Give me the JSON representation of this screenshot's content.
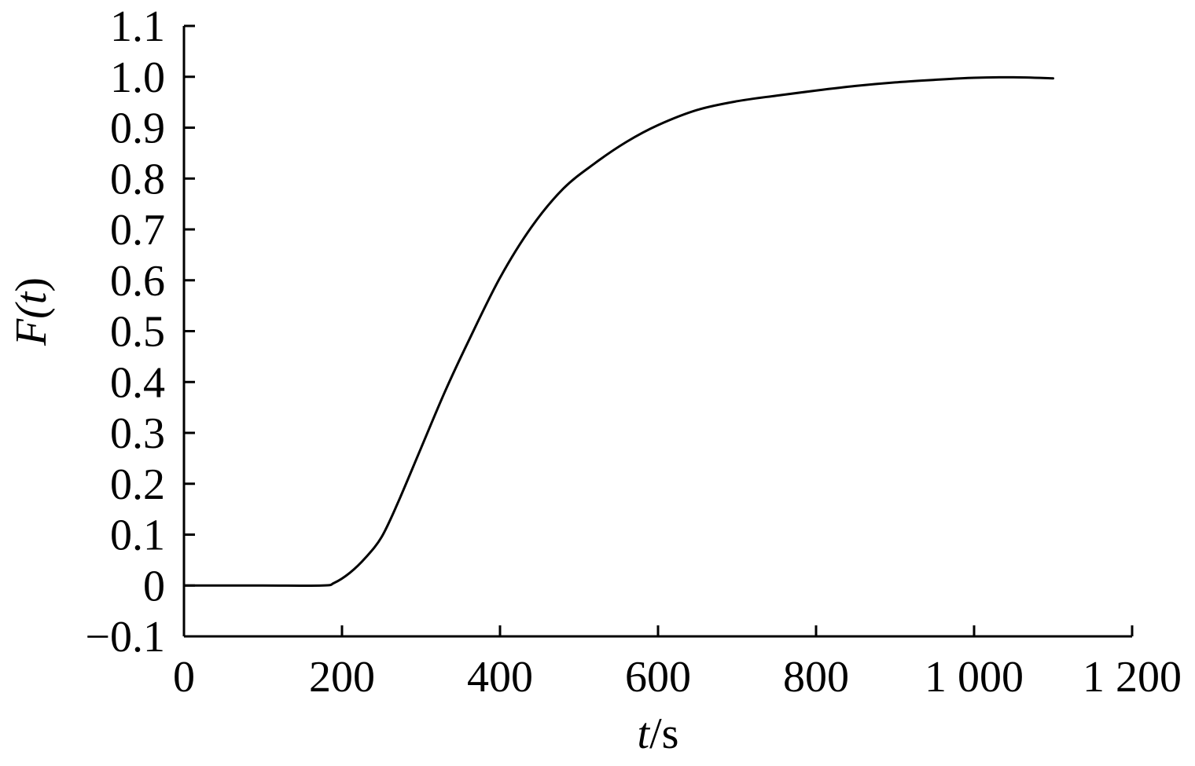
{
  "chart_data": {
    "type": "line",
    "xlabel": {
      "italic": "t",
      "rest": "/s"
    },
    "ylabel": {
      "prefix": "F(",
      "italic": "t",
      "suffix": ")"
    },
    "xlim": [
      0,
      1200
    ],
    "ylim": [
      -0.1,
      1.1
    ],
    "x_ticks": [
      {
        "value": 0,
        "label": "0"
      },
      {
        "value": 200,
        "label": "200"
      },
      {
        "value": 400,
        "label": "400"
      },
      {
        "value": 600,
        "label": "600"
      },
      {
        "value": 800,
        "label": "800"
      },
      {
        "value": 1000,
        "label": "1 000"
      },
      {
        "value": 1200,
        "label": "1 200"
      }
    ],
    "y_ticks": [
      {
        "value": -0.1,
        "label": "−0.1"
      },
      {
        "value": 0,
        "label": "0"
      },
      {
        "value": 0.1,
        "label": "0.1"
      },
      {
        "value": 0.2,
        "label": "0.2"
      },
      {
        "value": 0.3,
        "label": "0.3"
      },
      {
        "value": 0.4,
        "label": "0.4"
      },
      {
        "value": 0.5,
        "label": "0.5"
      },
      {
        "value": 0.6,
        "label": "0.6"
      },
      {
        "value": 0.7,
        "label": "0.7"
      },
      {
        "value": 0.8,
        "label": "0.8"
      },
      {
        "value": 0.9,
        "label": "0.9"
      },
      {
        "value": 1.0,
        "label": "1.0"
      },
      {
        "value": 1.1,
        "label": "1.1"
      }
    ],
    "grid": false,
    "series": [
      {
        "color": "#000000",
        "x": [
          0,
          100,
          175,
          190,
          210,
          230,
          250,
          270,
          300,
          330,
          360,
          400,
          440,
          480,
          520,
          560,
          600,
          650,
          700,
          750,
          800,
          850,
          900,
          950,
          1000,
          1050,
          1100
        ],
        "y": [
          0.0,
          0.0,
          0.0,
          0.005,
          0.025,
          0.055,
          0.095,
          0.16,
          0.27,
          0.38,
          0.48,
          0.605,
          0.705,
          0.78,
          0.83,
          0.872,
          0.905,
          0.935,
          0.952,
          0.963,
          0.973,
          0.982,
          0.989,
          0.994,
          0.998,
          0.999,
          0.997
        ]
      }
    ]
  }
}
